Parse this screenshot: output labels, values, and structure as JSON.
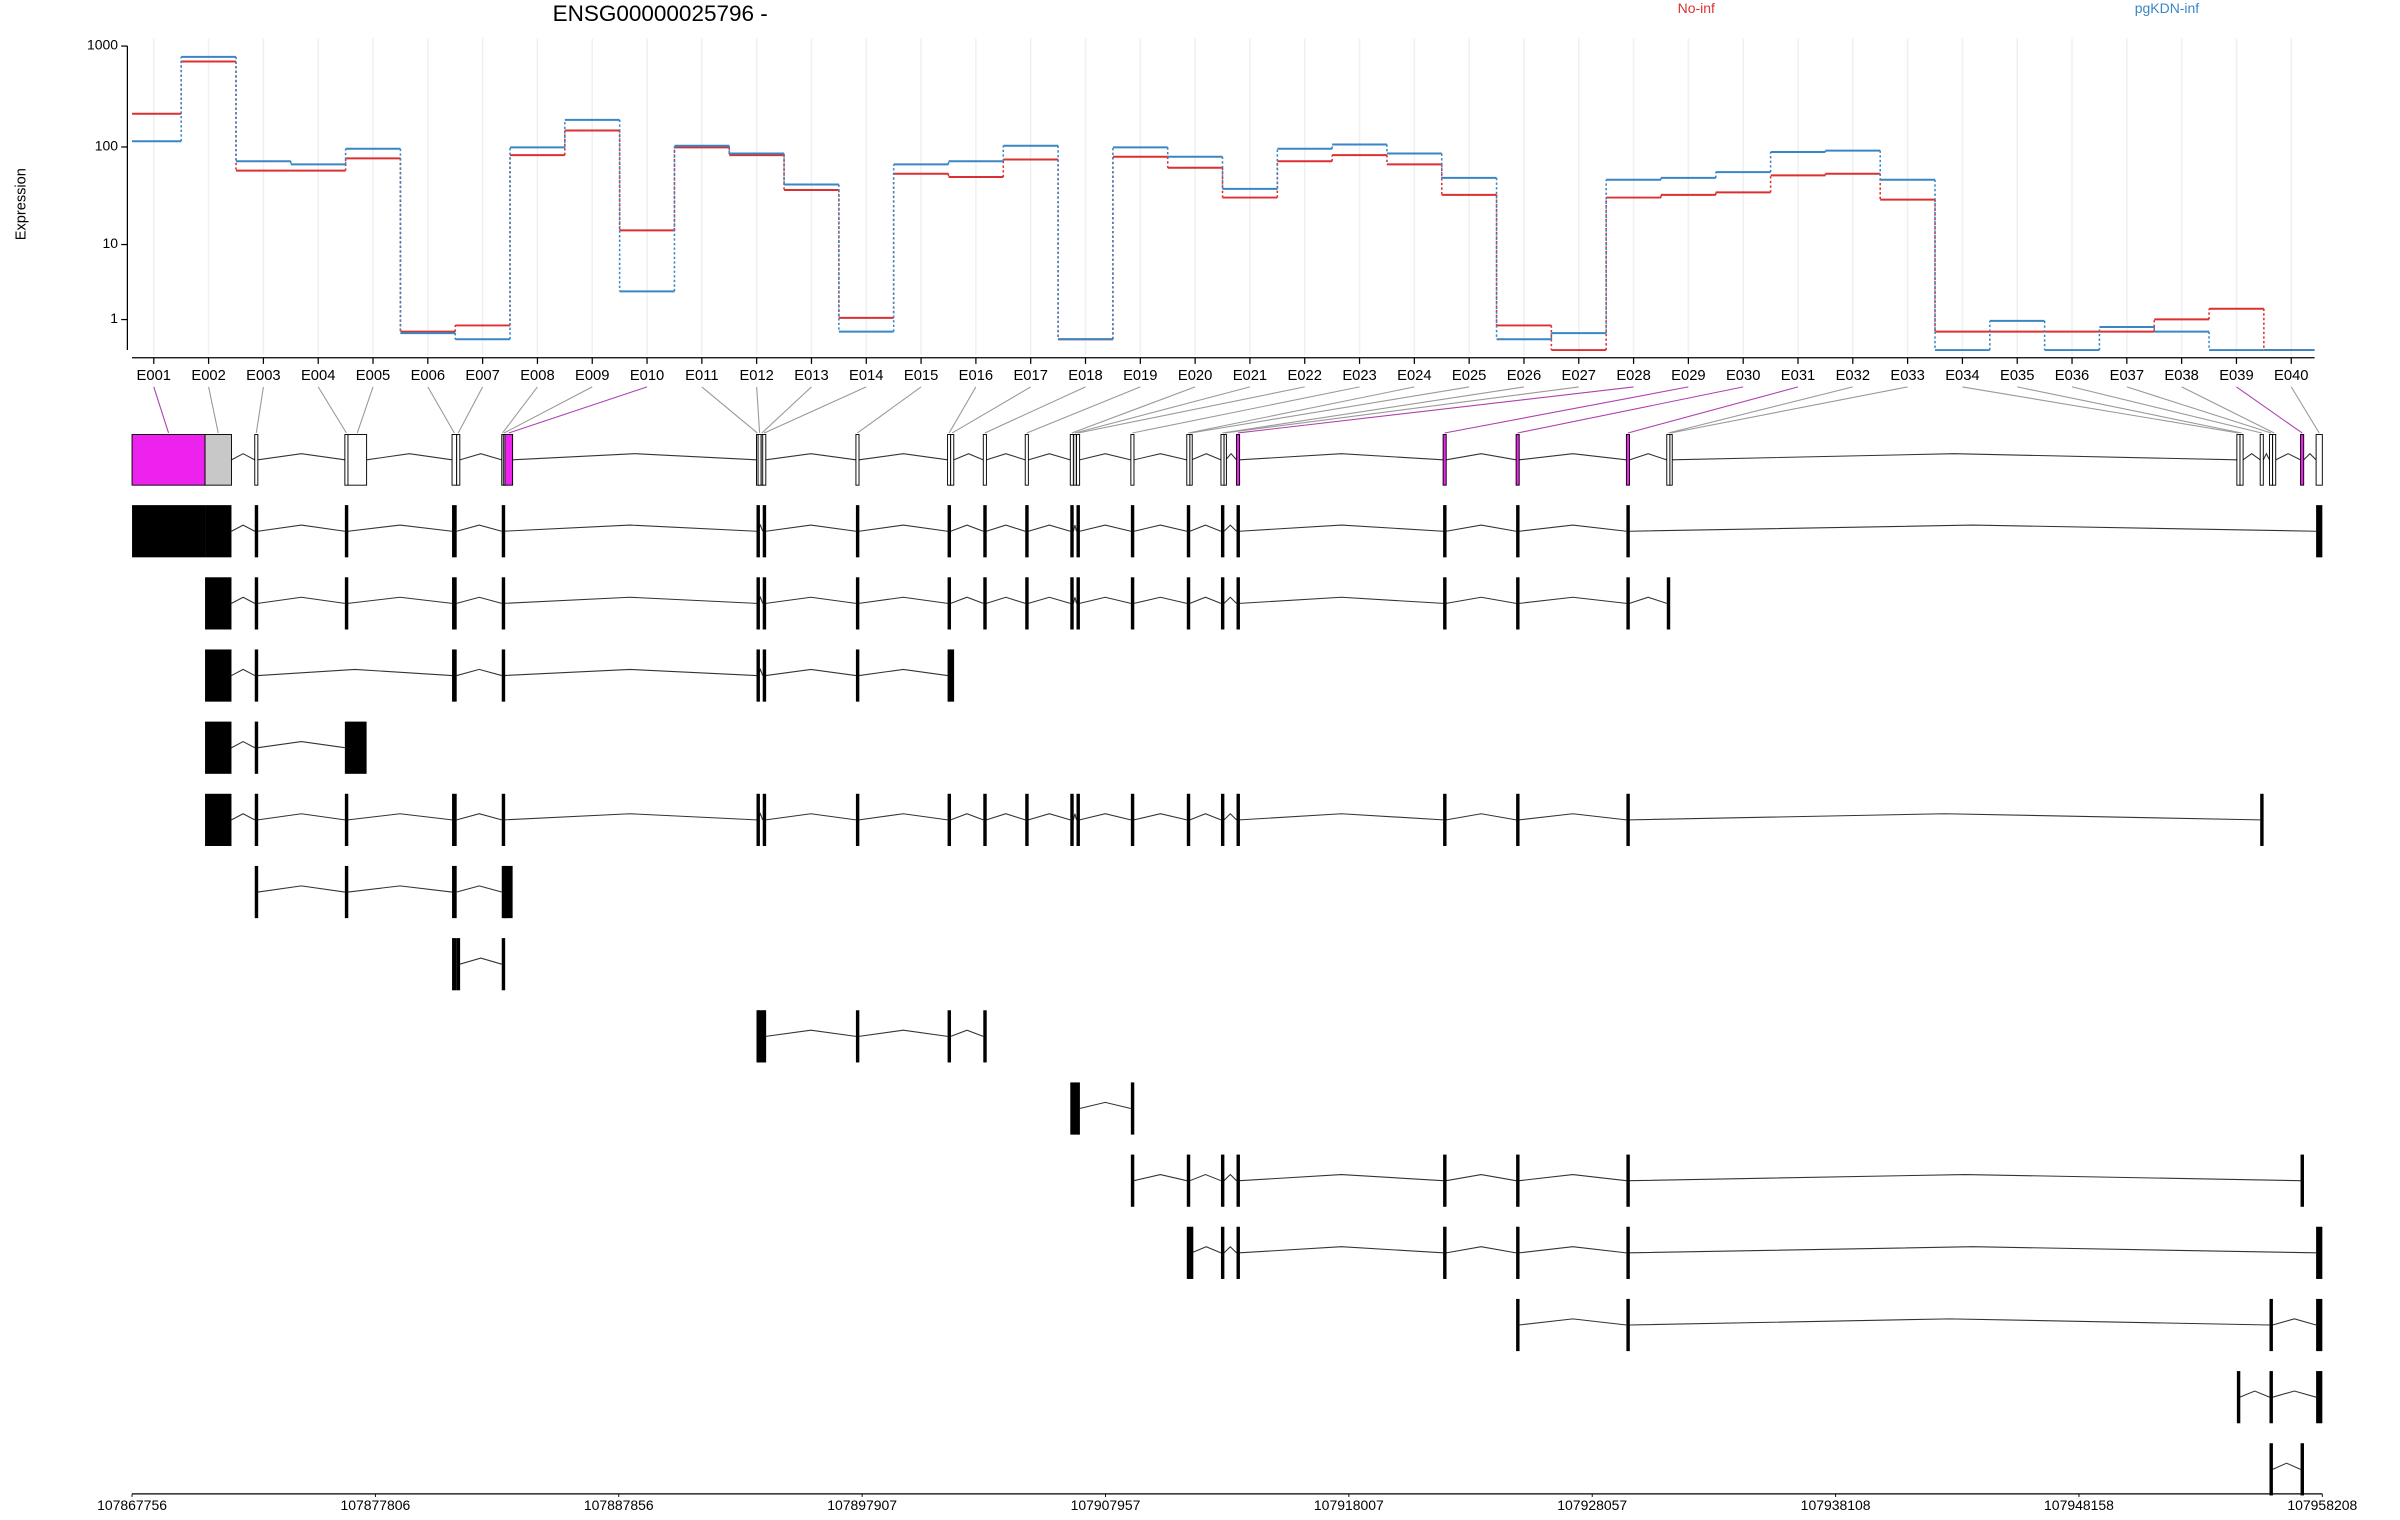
{
  "chart_data": {
    "type": "step",
    "title": "ENSG00000025796 -",
    "ylabel": "Expression",
    "categories": [
      "E001",
      "E002",
      "E003",
      "E004",
      "E005",
      "E006",
      "E007",
      "E008",
      "E009",
      "E010",
      "E011",
      "E012",
      "E013",
      "E014",
      "E015",
      "E016",
      "E017",
      "E018",
      "E019",
      "E020",
      "E021",
      "E022",
      "E023",
      "E024",
      "E025",
      "E026",
      "E027",
      "E028",
      "E029",
      "E030",
      "E031",
      "E032",
      "E033",
      "E034",
      "E035",
      "E036",
      "E037",
      "E038",
      "E039",
      "E040"
    ],
    "series": [
      {
        "name": "No-inf",
        "color": "#dc3030",
        "values": [
          214,
          704,
          58,
          58,
          77,
          0.52,
          0.75,
          83,
          146,
          14.2,
          99,
          83,
          37,
          1.08,
          54,
          50,
          75,
          0.28,
          80,
          62,
          31,
          72,
          83,
          67,
          33,
          0.75,
          0,
          31,
          33,
          35,
          52,
          54,
          29.5,
          0.52,
          0.52,
          0.52,
          0.52,
          1.01,
          1.56,
          0
        ]
      },
      {
        "name": "pgKDN-inf",
        "color": "#3a86c4",
        "values": [
          114,
          782,
          72,
          67,
          96,
          0.47,
          0.28,
          99,
          186,
          2.8,
          103,
          86,
          42,
          0.52,
          67,
          72,
          103,
          0.28,
          99,
          80,
          38,
          96,
          106,
          86,
          49,
          0.28,
          0.47,
          47,
          49,
          56,
          89,
          92,
          47,
          0,
          0.94,
          0,
          0.69,
          0.52,
          0,
          0
        ]
      }
    ],
    "ylim": [
      0,
      1000
    ],
    "yticks": [
      1,
      10,
      100,
      1000
    ],
    "yscale": "log",
    "log_offset": 1,
    "grid": true,
    "xlim": [
      107867756,
      107958208
    ],
    "xticks": [
      107867756,
      107877806,
      107887856,
      107897907,
      107907957,
      107918007,
      107928057,
      107938108,
      107948158,
      107958208
    ],
    "exons": [
      {
        "start": 107867756,
        "end": 107870771,
        "color": "#ee22ee"
      },
      {
        "start": 107870771,
        "end": 107871862,
        "color": "#c8c8c8"
      },
      {
        "start": 107872824,
        "end": 107872952,
        "color": "#ffffff"
      },
      {
        "start": 107876545,
        "end": 107876673,
        "color": "#ffffff"
      },
      {
        "start": 107876673,
        "end": 107877443,
        "color": "#ffffff"
      },
      {
        "start": 107880971,
        "end": 107881163,
        "color": "#ffffff"
      },
      {
        "start": 107881163,
        "end": 107881292,
        "color": "#ffffff"
      },
      {
        "start": 107883024,
        "end": 107883088,
        "color": "#ffffff"
      },
      {
        "start": 107883088,
        "end": 107883152,
        "color": "#ffffff"
      },
      {
        "start": 107883152,
        "end": 107883473,
        "color": "#ee22ee"
      },
      {
        "start": 107893544,
        "end": 107893608,
        "color": "#ffffff"
      },
      {
        "start": 107893608,
        "end": 107893737,
        "color": "#ffffff"
      },
      {
        "start": 107893737,
        "end": 107893801,
        "color": "#ffffff"
      },
      {
        "start": 107893801,
        "end": 107893929,
        "color": "#ffffff"
      },
      {
        "start": 107897650,
        "end": 107897778,
        "color": "#ffffff"
      },
      {
        "start": 107901435,
        "end": 107901563,
        "color": "#ffffff"
      },
      {
        "start": 107901563,
        "end": 107901691,
        "color": "#ffffff"
      },
      {
        "start": 107902910,
        "end": 107903039,
        "color": "#ffffff"
      },
      {
        "start": 107904642,
        "end": 107904771,
        "color": "#ffffff"
      },
      {
        "start": 107906503,
        "end": 107906631,
        "color": "#ffffff"
      },
      {
        "start": 107906631,
        "end": 107906759,
        "color": "#c8c8c8"
      },
      {
        "start": 107906759,
        "end": 107906888,
        "color": "#ffffff"
      },
      {
        "start": 107909004,
        "end": 107909133,
        "color": "#ffffff"
      },
      {
        "start": 107911314,
        "end": 107911442,
        "color": "#ffffff"
      },
      {
        "start": 107911442,
        "end": 107911506,
        "color": "#ffffff"
      },
      {
        "start": 107912725,
        "end": 107912853,
        "color": "#ffffff"
      },
      {
        "start": 107912853,
        "end": 107912918,
        "color": "#ffffff"
      },
      {
        "start": 107913367,
        "end": 107913495,
        "color": "#ee22ee"
      },
      {
        "start": 107921899,
        "end": 107922027,
        "color": "#ee22ee"
      },
      {
        "start": 107924914,
        "end": 107925042,
        "color": "#ee22ee"
      },
      {
        "start": 107929468,
        "end": 107929597,
        "color": "#ee22ee"
      },
      {
        "start": 107931136,
        "end": 107931265,
        "color": "#ffffff"
      },
      {
        "start": 107931265,
        "end": 107931329,
        "color": "#ffffff"
      },
      {
        "start": 107954679,
        "end": 107954808,
        "color": "#ffffff"
      },
      {
        "start": 107954808,
        "end": 107954936,
        "color": "#ffffff"
      },
      {
        "start": 107955642,
        "end": 107955770,
        "color": "#ffffff"
      },
      {
        "start": 107956026,
        "end": 107956155,
        "color": "#ffffff"
      },
      {
        "start": 107956155,
        "end": 107956283,
        "color": "#ffffff"
      },
      {
        "start": 107957309,
        "end": 107957438,
        "color": "#ee22ee"
      },
      {
        "start": 107957951,
        "end": 107958208,
        "color": "#ffffff"
      }
    ],
    "transcripts": [
      [
        0,
        1,
        2,
        3,
        5,
        7,
        10,
        13,
        14,
        15,
        17,
        18,
        19,
        21,
        22,
        23,
        25,
        27,
        28,
        29,
        30,
        39
      ],
      [
        1,
        2,
        3,
        5,
        7,
        10,
        13,
        14,
        15,
        17,
        18,
        19,
        21,
        22,
        23,
        25,
        27,
        28,
        29,
        30,
        31
      ],
      [
        1,
        2,
        5,
        7,
        10,
        13,
        14,
        15,
        16
      ],
      [
        1,
        2,
        3,
        4
      ],
      [
        1,
        2,
        3,
        5,
        7,
        10,
        13,
        14,
        15,
        17,
        18,
        19,
        21,
        22,
        23,
        25,
        27,
        28,
        29,
        30,
        35
      ],
      [
        2,
        3,
        5,
        7,
        8,
        9
      ],
      [
        5,
        6,
        7
      ],
      [
        10,
        11,
        12,
        13,
        14,
        15,
        17
      ],
      [
        19,
        20,
        21,
        22
      ],
      [
        22,
        23,
        25,
        27,
        28,
        29,
        30,
        38
      ],
      [
        23,
        24,
        25,
        27,
        28,
        29,
        30,
        39
      ],
      [
        29,
        30,
        36,
        39
      ],
      [
        33,
        36,
        39
      ],
      [
        36,
        38
      ]
    ]
  }
}
